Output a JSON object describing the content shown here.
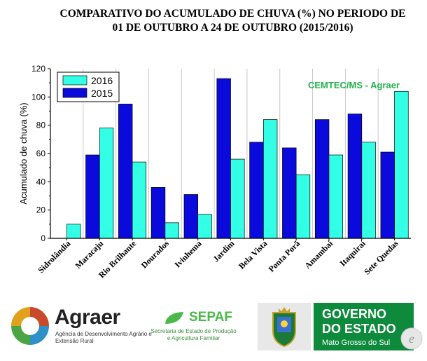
{
  "title_line1": "COMPARATIVO DO ACUMULADO DE CHUVA (%) NO PERIODO DE",
  "title_line2": "01 DE OUTUBRO A  24 DE OUTUBRO (2015/2016)",
  "credit": "CEMTEC/MS - Agraer",
  "chart_data": {
    "type": "bar",
    "title": "COMPARATIVO DO ACUMULADO DE CHUVA (%) NO PERIODO DE 01 DE OUTUBRO A  24 DE OUTUBRO (2015/2016)",
    "xlabel": "",
    "ylabel": "Acumulado de chuva (%)",
    "ylim": [
      0,
      120
    ],
    "yticks": [
      0,
      20,
      40,
      60,
      80,
      100,
      120
    ],
    "grid": "vertical",
    "legend": "top-left",
    "categories": [
      "Sidrolândia",
      "Maracaju",
      "Rio Brilhante",
      "Dourados",
      "Ivinhema",
      "Jardim",
      "Bela Vista",
      "Ponta Porã",
      "Amambai",
      "Itaquiraí",
      "Sete Quedas"
    ],
    "series": [
      {
        "name": "2015",
        "color": "#0a0adc",
        "values": [
          0,
          59,
          95,
          36,
          31,
          113,
          68,
          64,
          84,
          88,
          61
        ]
      },
      {
        "name": "2016",
        "color": "#33ffe6",
        "values": [
          10,
          78,
          54,
          11,
          17,
          56,
          84,
          45,
          59,
          68,
          104
        ]
      }
    ],
    "legend_order": [
      "2016",
      "2015"
    ]
  },
  "logos": {
    "agraer_name": "Agraer",
    "agraer_sub": "Agência de Desenvolvimento Agrário e Extensão Rural",
    "sepaf_name": "SEPAF",
    "sepaf_sub": "Secretaria de Estado de Produção e Agricultura Familiar",
    "gov_line1": "GOVERNO",
    "gov_line2": "DO ESTADO",
    "gov_line3": "Mato Grosso do Sul"
  }
}
